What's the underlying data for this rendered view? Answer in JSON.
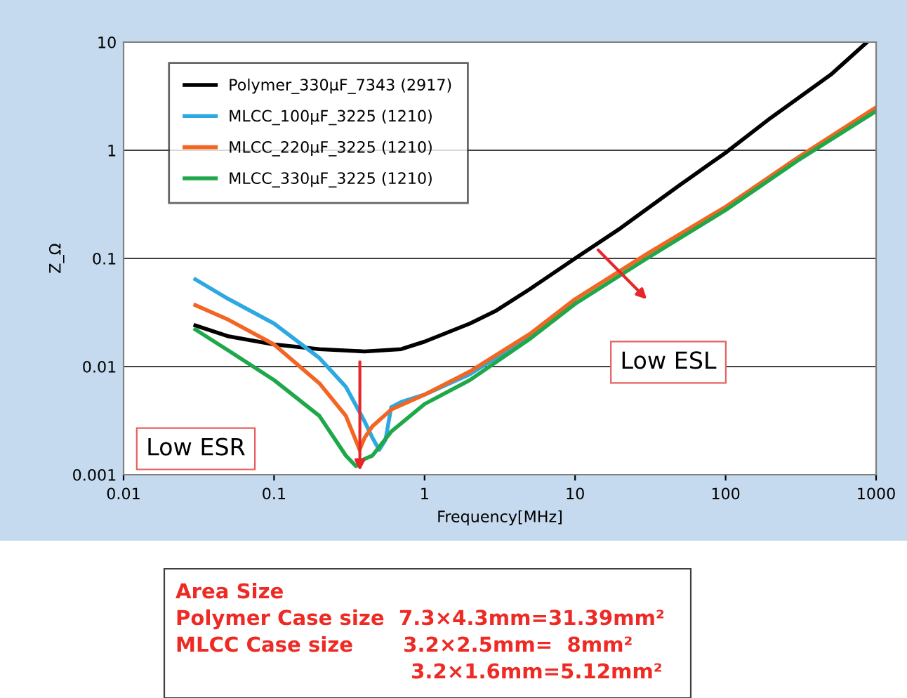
{
  "chart_data": {
    "type": "line",
    "xlabel": "Frequency[MHz]",
    "ylabel": "Z_Ω",
    "log": "xy",
    "xlim": [
      0.01,
      1000
    ],
    "xticks": [
      0.01,
      0.1,
      1,
      10,
      100,
      1000
    ],
    "ylim": [
      0.001,
      10
    ],
    "yticks": [
      0.001,
      0.01,
      0.1,
      1,
      10
    ],
    "grid": "y",
    "legend": "top left",
    "marker": "none",
    "line_style": "solid",
    "series": [
      {
        "name": "Polymer_330μF_7343 (2917)",
        "color": "#000000",
        "x": [
          0.03,
          0.05,
          0.1,
          0.2,
          0.4,
          0.7,
          1,
          2,
          3,
          5,
          10,
          20,
          50,
          100,
          200,
          500,
          870
        ],
        "values": [
          0.024,
          0.019,
          0.016,
          0.0145,
          0.0138,
          0.0145,
          0.017,
          0.025,
          0.033,
          0.052,
          0.1,
          0.19,
          0.48,
          0.95,
          2.0,
          5.0,
          10
        ]
      },
      {
        "name": "MLCC_100μF_3225 (1210)",
        "color": "#2ea8e0",
        "x": [
          0.03,
          0.05,
          0.1,
          0.2,
          0.3,
          0.4,
          0.45,
          0.5,
          0.55,
          0.6,
          0.7,
          1,
          2,
          5,
          10
        ],
        "values": [
          0.064,
          0.042,
          0.025,
          0.012,
          0.0065,
          0.0031,
          0.0022,
          0.0017,
          0.0021,
          0.0042,
          0.0047,
          0.0055,
          0.0085,
          0.019,
          0.04
        ]
      },
      {
        "name": "MLCC_220μF_3225 (1210)",
        "color": "#f26522",
        "x": [
          0.03,
          0.05,
          0.1,
          0.2,
          0.3,
          0.37,
          0.4,
          0.45,
          0.6,
          1,
          2,
          5,
          10,
          30,
          100,
          300,
          1000
        ],
        "values": [
          0.037,
          0.027,
          0.016,
          0.007,
          0.0035,
          0.0017,
          0.0022,
          0.0028,
          0.004,
          0.0055,
          0.009,
          0.02,
          0.042,
          0.11,
          0.3,
          0.85,
          2.5
        ]
      },
      {
        "name": "MLCC_330μF_3225 (1210)",
        "color": "#1fa84a",
        "x": [
          0.03,
          0.05,
          0.1,
          0.2,
          0.3,
          0.35,
          0.4,
          0.45,
          0.6,
          1,
          2,
          5,
          10,
          30,
          100,
          300,
          1000
        ],
        "values": [
          0.022,
          0.014,
          0.0075,
          0.0035,
          0.0015,
          0.0012,
          0.0014,
          0.0015,
          0.0025,
          0.0045,
          0.0075,
          0.018,
          0.038,
          0.1,
          0.28,
          0.8,
          2.3
        ]
      }
    ],
    "annotations": [
      "Low ESR",
      "Low ESL",
      "Area Size",
      "Polymer Case size  7.3×4.3mm=31.39mm²",
      "MLCC Case size       3.2×2.5mm=  8mm²",
      "                                 3.2×1.6mm=5.12mm²"
    ]
  }
}
